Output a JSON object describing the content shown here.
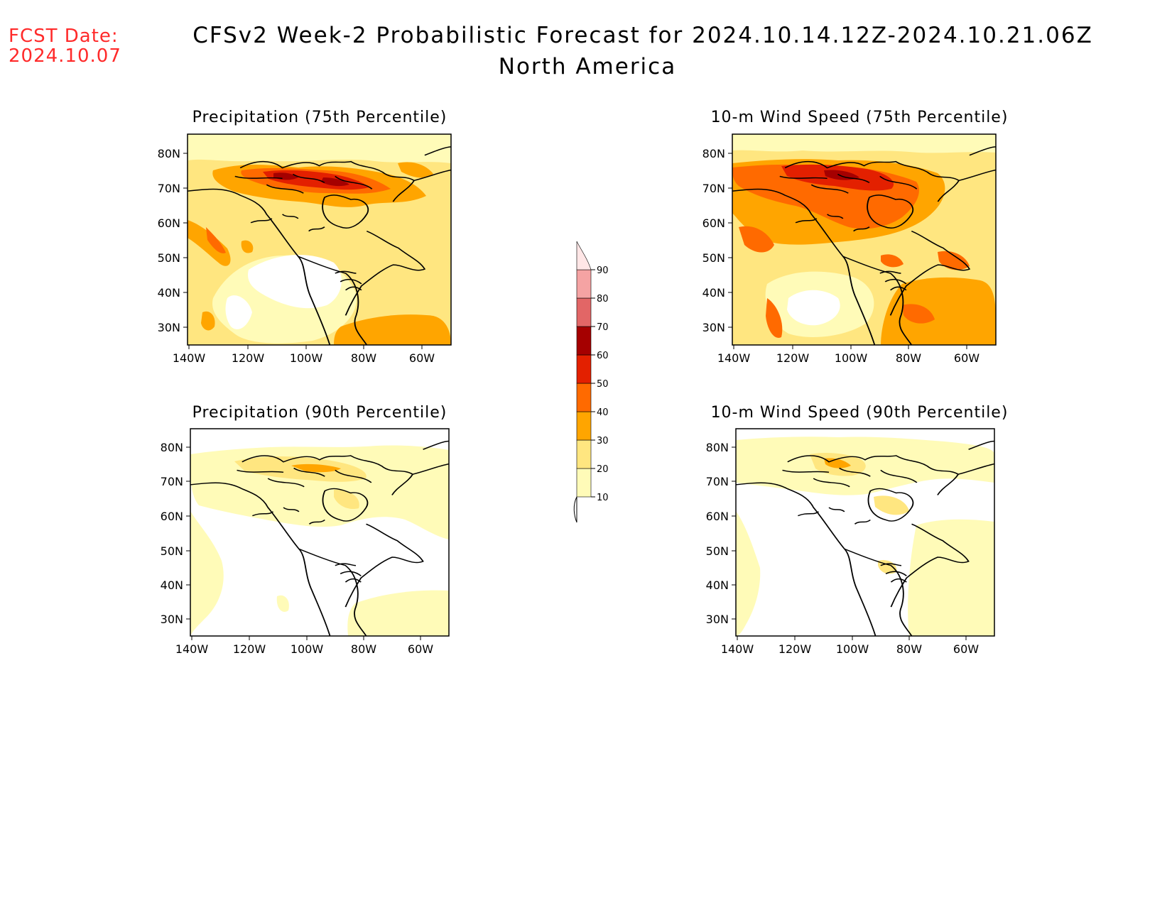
{
  "header": {
    "fcst_label": "FCST Date:",
    "fcst_date": "2024.10.07",
    "title": "CFSv2 Week-2 Probabilistic Forecast for 2024.10.14.12Z-2024.10.21.06Z",
    "subtitle": "North America"
  },
  "panels": [
    {
      "title": "Precipitation (75th Percentile)"
    },
    {
      "title": "10-m Wind Speed (75th Percentile)"
    },
    {
      "title": "Precipitation (90th Percentile)"
    },
    {
      "title": "10-m Wind Speed (90th Percentile)"
    }
  ],
  "axes": {
    "lat_labels": [
      "80N",
      "70N",
      "60N",
      "50N",
      "40N",
      "30N"
    ],
    "lon_labels": [
      "140W",
      "120W",
      "100W",
      "80W",
      "60W"
    ]
  },
  "colorbar": {
    "levels": [
      "10",
      "20",
      "30",
      "40",
      "50",
      "60",
      "70",
      "80",
      "90"
    ],
    "colors": [
      "#fffbb8",
      "#ffe680",
      "#ffa500",
      "#ff6a00",
      "#e32000",
      "#a50000",
      "#e26666",
      "#f5a3a3",
      "#ffe6e6"
    ]
  }
}
